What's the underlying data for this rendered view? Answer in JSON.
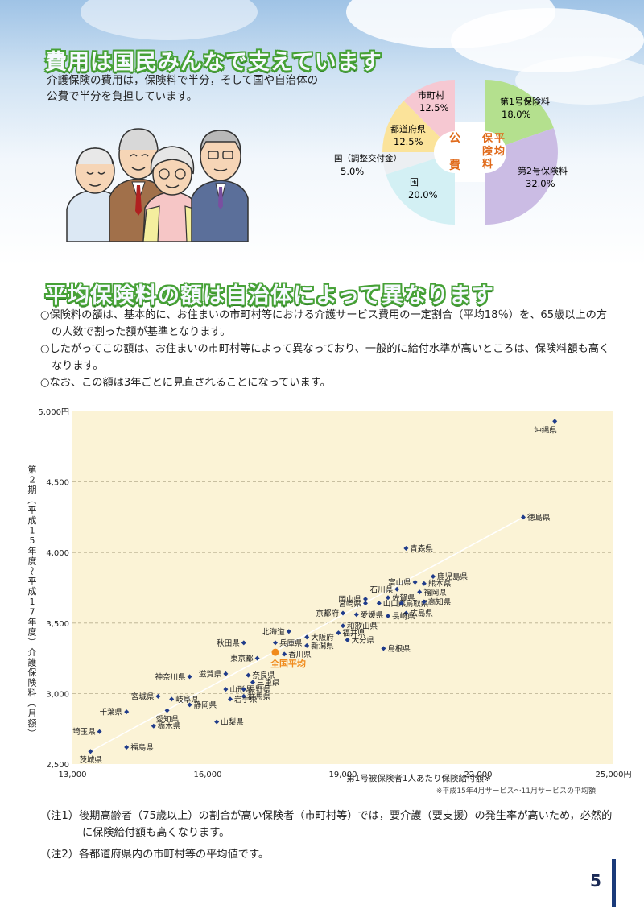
{
  "section1": {
    "title": "費用は国民みんなで支えています",
    "intro_line1": "介護保険の費用は，保険料で半分，そして国や自治体の",
    "intro_line2": "公費で半分を負担しています。"
  },
  "pie": {
    "public_label": [
      "公",
      "費"
    ],
    "premium_label": [
      "保",
      "険",
      "料"
    ],
    "average_label": [
      "平",
      "均"
    ],
    "slices": [
      {
        "name": "市町村",
        "value": "12.5%",
        "color": "#f6c8d2"
      },
      {
        "name": "都道府県",
        "value": "12.5%",
        "color": "#fbe39a"
      },
      {
        "name": "国（調整交付金）",
        "value": "5.0%",
        "color": "#eceff2"
      },
      {
        "name": "国",
        "value": "20.0%",
        "color": "#d3f0f4"
      },
      {
        "name": "第1号保険料",
        "value": "18.0%",
        "color": "#b4e08e"
      },
      {
        "name": "第2号保険料",
        "value": "32.0%",
        "color": "#cbbce4"
      }
    ]
  },
  "section2": {
    "title": "平均保険料の額は自治体によって異なります",
    "bullet1": "○保険料の額は、基本的に、お住まいの市町村等における介護サービス費用の一定割合（平均18％）を、65歳以上の方の人数で割った額が基準となります。",
    "bullet2": "○したがってこの額は、お住まいの市町村等によって異なっており、一般的に給付水準が高いところは、保険料額も高くなります。",
    "bullet3": "○なお、この額は3年ごとに見直されることになっています。"
  },
  "chart_data": {
    "type": "scatter",
    "ylabel": "第２期（平成15年度～平成17年度）介護保険料（月額）",
    "xlabel": "第1号被保険者1人あたり保険給付額※",
    "footnote": "※平成15年4月サービス～11月サービスの平均額",
    "xlim": [
      13000,
      25000
    ],
    "ylim": [
      2500,
      5000
    ],
    "x_ticks": [
      "13,000",
      "16,000",
      "19,000",
      "22,000",
      "25,000円"
    ],
    "y_ticks": [
      "2,500",
      "3,000",
      "3,500",
      "4,000",
      "4,500",
      "5,000円"
    ],
    "grid": "horizontal dashed",
    "highlight": {
      "name": "全国平均",
      "x": 17500,
      "y": 3293
    },
    "points": [
      {
        "name": "沖縄県",
        "x": 23700,
        "y": 4930
      },
      {
        "name": "徳島県",
        "x": 23000,
        "y": 4250
      },
      {
        "name": "青森県",
        "x": 20400,
        "y": 4030
      },
      {
        "name": "鹿児島県",
        "x": 21000,
        "y": 3830
      },
      {
        "name": "富山県",
        "x": 20600,
        "y": 3790
      },
      {
        "name": "熊本県",
        "x": 20800,
        "y": 3780
      },
      {
        "name": "石川県",
        "x": 20200,
        "y": 3740
      },
      {
        "name": "福岡県",
        "x": 20700,
        "y": 3720
      },
      {
        "name": "佐賀県",
        "x": 20000,
        "y": 3680
      },
      {
        "name": "岡山県",
        "x": 19500,
        "y": 3670
      },
      {
        "name": "宮崎県",
        "x": 19500,
        "y": 3640
      },
      {
        "name": "山口県",
        "x": 19800,
        "y": 3640
      },
      {
        "name": "鳥取県",
        "x": 20300,
        "y": 3640
      },
      {
        "name": "高知県",
        "x": 20800,
        "y": 3650
      },
      {
        "name": "京都府",
        "x": 19000,
        "y": 3570
      },
      {
        "name": "愛媛県",
        "x": 19300,
        "y": 3560
      },
      {
        "name": "広島県",
        "x": 20400,
        "y": 3570
      },
      {
        "name": "長崎県",
        "x": 20000,
        "y": 3550
      },
      {
        "name": "北海道",
        "x": 17800,
        "y": 3440
      },
      {
        "name": "和歌山県",
        "x": 19000,
        "y": 3480
      },
      {
        "name": "大阪府",
        "x": 18200,
        "y": 3400
      },
      {
        "name": "福井県",
        "x": 18900,
        "y": 3430
      },
      {
        "name": "大分県",
        "x": 19100,
        "y": 3380
      },
      {
        "name": "兵庫県",
        "x": 17500,
        "y": 3360
      },
      {
        "name": "新潟県",
        "x": 18200,
        "y": 3340
      },
      {
        "name": "秋田県",
        "x": 16800,
        "y": 3360
      },
      {
        "name": "香川県",
        "x": 17700,
        "y": 3280
      },
      {
        "name": "島根県",
        "x": 19900,
        "y": 3320
      },
      {
        "name": "東京都",
        "x": 17100,
        "y": 3250
      },
      {
        "name": "神奈川県",
        "x": 15600,
        "y": 3120
      },
      {
        "name": "滋賀県",
        "x": 16400,
        "y": 3140
      },
      {
        "name": "奈良県",
        "x": 16900,
        "y": 3130
      },
      {
        "name": "三重県",
        "x": 17000,
        "y": 3080
      },
      {
        "name": "宮城県",
        "x": 14900,
        "y": 2980
      },
      {
        "name": "山形県",
        "x": 16400,
        "y": 3030
      },
      {
        "name": "長野県",
        "x": 16800,
        "y": 3030
      },
      {
        "name": "岐阜県",
        "x": 15200,
        "y": 2960
      },
      {
        "name": "群馬県",
        "x": 16800,
        "y": 2980
      },
      {
        "name": "岩手県",
        "x": 16500,
        "y": 2960
      },
      {
        "name": "静岡県",
        "x": 15600,
        "y": 2920
      },
      {
        "name": "愛知県",
        "x": 15100,
        "y": 2880
      },
      {
        "name": "千葉県",
        "x": 14200,
        "y": 2870
      },
      {
        "name": "山梨県",
        "x": 16200,
        "y": 2800
      },
      {
        "name": "栃木県",
        "x": 14800,
        "y": 2770
      },
      {
        "name": "埼玉県",
        "x": 13600,
        "y": 2730
      },
      {
        "name": "福島県",
        "x": 14200,
        "y": 2620
      },
      {
        "name": "茨城県",
        "x": 13400,
        "y": 2590
      }
    ]
  },
  "notes": {
    "note1_prefix": "（注1）",
    "note1": "後期高齢者（75歳以上）の割合が高い保険者（市町村等）では，要介護（要支援）の発生率が高いため，必然的に保険給付額も高くなります。",
    "note2_prefix": "（注2）",
    "note2": "各都道府県内の市町村等の平均値です。"
  },
  "page_number": "5"
}
